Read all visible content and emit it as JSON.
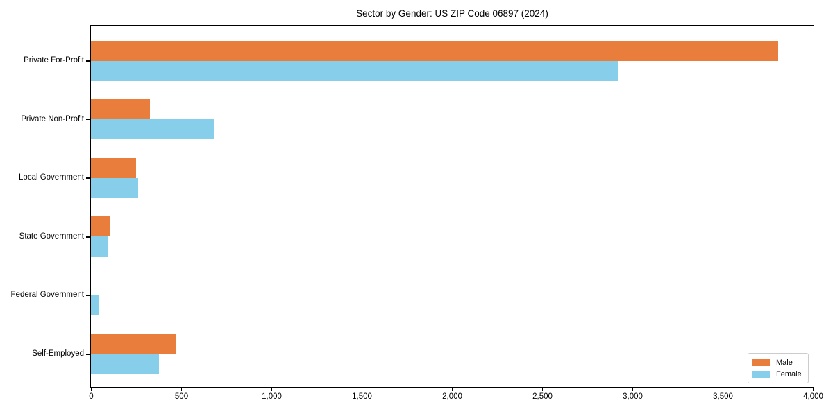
{
  "title": "Sector by Gender: US ZIP Code 06897 (2024)",
  "chart_data": {
    "type": "bar",
    "orientation": "horizontal",
    "title": "Sector by Gender: US ZIP Code 06897 (2024)",
    "xlabel": "",
    "ylabel": "",
    "categories": [
      "Private For-Profit",
      "Private Non-Profit",
      "Local Government",
      "State Government",
      "Federal Government",
      "Self-Employed"
    ],
    "series": [
      {
        "name": "Male",
        "color": "#e87d3c",
        "values": [
          3808,
          327,
          251,
          104,
          0,
          471
        ]
      },
      {
        "name": "Female",
        "color": "#87ceeb",
        "values": [
          2918,
          679,
          263,
          91,
          47,
          378
        ]
      }
    ],
    "xlim": [
      0,
      4000
    ],
    "x_ticks": [
      0,
      500,
      1000,
      1500,
      2000,
      2500,
      3000,
      3500,
      4000
    ],
    "x_tick_labels": [
      "0",
      "500",
      "1,000",
      "1,500",
      "2,000",
      "2,500",
      "3,000",
      "3,500",
      "4,000"
    ],
    "grid": false,
    "legend_position": "lower right"
  },
  "legend": {
    "items": [
      {
        "label": "Male",
        "color": "#e87d3c"
      },
      {
        "label": "Female",
        "color": "#87ceeb"
      }
    ]
  }
}
